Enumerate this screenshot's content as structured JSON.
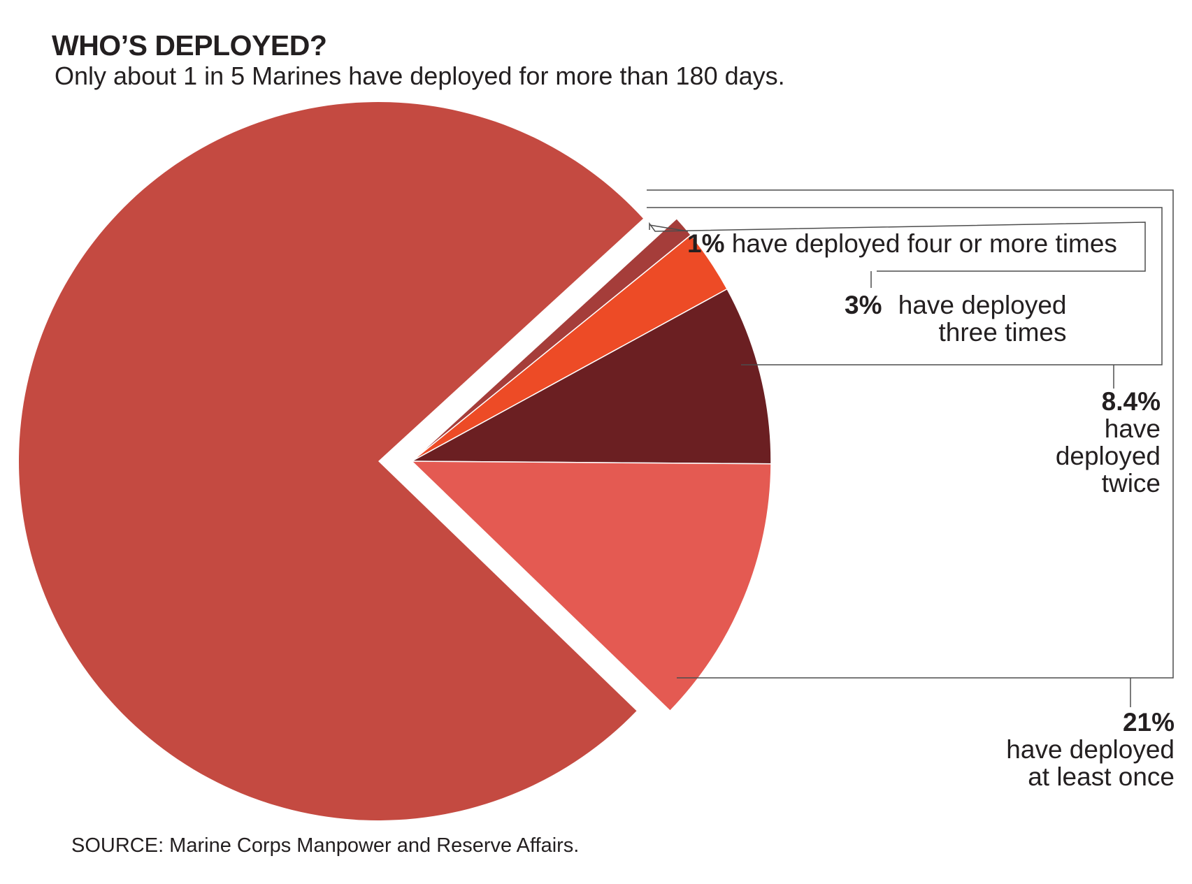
{
  "title": "WHO’S DEPLOYED?",
  "subtitle": "Only about 1 in 5 Marines have deployed for more than 180 days.",
  "source": "SOURCE: Marine Corps Manpower and Reserve Affairs.",
  "chart_data": {
    "type": "pie",
    "title": "WHO’S DEPLOYED?",
    "subtitle": "Only about 1 in 5 Marines have deployed for more than 180 days.",
    "slices": [
      {
        "value_label": "",
        "text": "",
        "value": 79,
        "color": "#c44a41",
        "exploded": true
      },
      {
        "value_label": "1%",
        "text": "have deployed four or more times",
        "value": 1,
        "color": "#a53d3a"
      },
      {
        "value_label": "3%",
        "text": "have deployed three times",
        "value": 3,
        "color": "#ed4b26"
      },
      {
        "value_label": "8.4%",
        "text": "have deployed twice",
        "value": 8.4,
        "color": "#6b1f22"
      },
      {
        "value_label": "",
        "text": "",
        "value": 12.6,
        "color": "#e45a52"
      }
    ],
    "bracket_label": {
      "value_label": "21%",
      "text": "have deployed at least once",
      "value": 21
    }
  }
}
